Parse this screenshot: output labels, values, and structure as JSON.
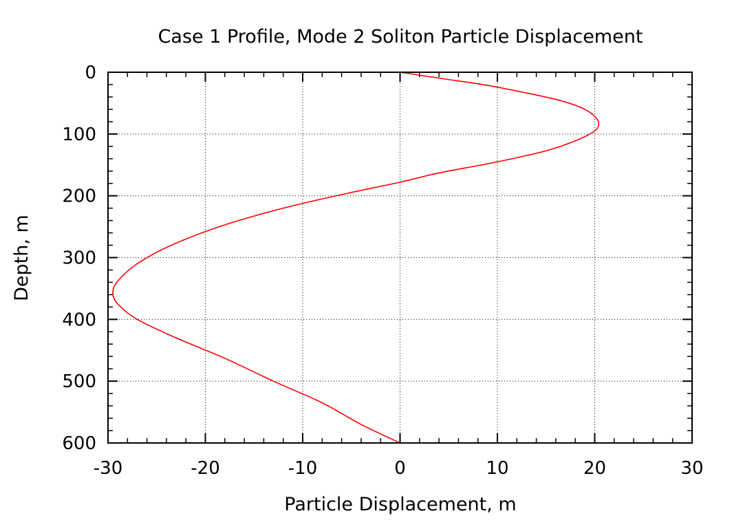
{
  "chart_data": {
    "type": "line",
    "title": "Case 1 Profile, Mode 2 Soliton Particle Displacement",
    "xlabel": "Particle Displacement, m",
    "ylabel": "Depth, m",
    "xlim": [
      -30,
      30
    ],
    "ylim": [
      0,
      600
    ],
    "y_inverted": true,
    "grid": true,
    "x_ticks": [
      "-30",
      "-20",
      "-10",
      "0",
      "10",
      "20",
      "30"
    ],
    "y_ticks": [
      "0",
      "100",
      "200",
      "300",
      "400",
      "500",
      "600"
    ],
    "series": [
      {
        "color": "#ff0000",
        "points": [
          {
            "x": 0,
            "y": 0
          },
          {
            "x": 4.2,
            "y": 10
          },
          {
            "x": 8.5,
            "y": 20
          },
          {
            "x": 12.5,
            "y": 32
          },
          {
            "x": 16.5,
            "y": 46
          },
          {
            "x": 19.2,
            "y": 62
          },
          {
            "x": 20.4,
            "y": 82
          },
          {
            "x": 19.5,
            "y": 100
          },
          {
            "x": 15.5,
            "y": 125
          },
          {
            "x": 10.0,
            "y": 145
          },
          {
            "x": 4.0,
            "y": 163
          },
          {
            "x": 0,
            "y": 178
          },
          {
            "x": -6.0,
            "y": 198
          },
          {
            "x": -12.0,
            "y": 220
          },
          {
            "x": -18.0,
            "y": 247
          },
          {
            "x": -23.5,
            "y": 280
          },
          {
            "x": -27.0,
            "y": 310
          },
          {
            "x": -29.0,
            "y": 338
          },
          {
            "x": -29.5,
            "y": 357
          },
          {
            "x": -29.0,
            "y": 375
          },
          {
            "x": -27.0,
            "y": 400
          },
          {
            "x": -23.0,
            "y": 430
          },
          {
            "x": -18.0,
            "y": 463
          },
          {
            "x": -13.0,
            "y": 500
          },
          {
            "x": -8.0,
            "y": 535
          },
          {
            "x": -4.0,
            "y": 570
          },
          {
            "x": 0,
            "y": 600
          }
        ]
      }
    ]
  }
}
